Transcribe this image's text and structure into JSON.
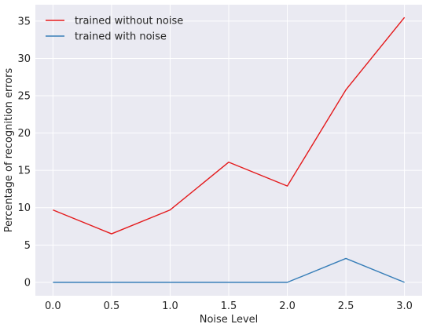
{
  "colors": {
    "plot_background": "#eaeaf2",
    "grid": "#ffffff",
    "series_without_noise": "#e41a1c",
    "series_with_noise": "#377eb8"
  },
  "chart_data": {
    "type": "line",
    "title": "",
    "xlabel": "Noise Level",
    "ylabel": "Percentage of recognition errors",
    "x": [
      0.0,
      0.5,
      1.0,
      1.5,
      2.0,
      2.5,
      3.0
    ],
    "xticks": [
      "0.0",
      "0.5",
      "1.0",
      "1.5",
      "2.0",
      "2.5",
      "3.0"
    ],
    "yticks": [
      "0",
      "5",
      "10",
      "15",
      "20",
      "25",
      "30",
      "35"
    ],
    "xlim": [
      -0.15,
      3.15
    ],
    "ylim": [
      -1.8,
      37.2
    ],
    "grid": true,
    "legend": "top-left",
    "series": [
      {
        "name": "trained without noise",
        "color": "#e41a1c",
        "values": [
          9.7,
          6.5,
          9.7,
          16.1,
          12.9,
          25.8,
          35.5
        ]
      },
      {
        "name": "trained with noise",
        "color": "#377eb8",
        "values": [
          0,
          0,
          0,
          0,
          0,
          3.2,
          0
        ]
      }
    ]
  }
}
